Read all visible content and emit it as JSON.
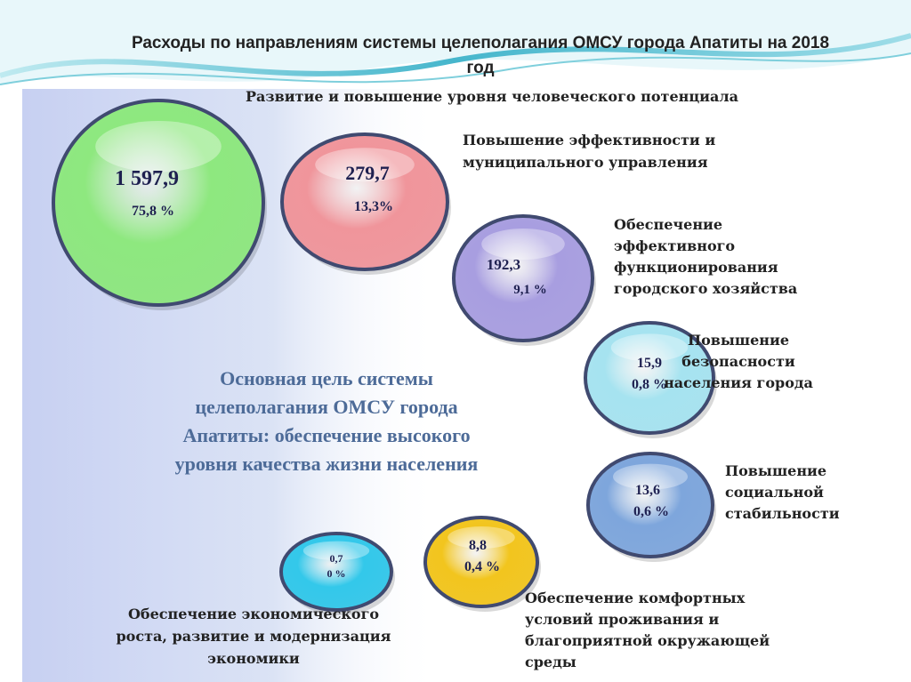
{
  "header": {
    "title_lines": [
      "Расходы по направлениям системы целеполагания ОМСУ города Апатиты  на 2018",
      "год"
    ]
  },
  "goal": {
    "lines": [
      "Основная цель системы",
      "целеполагания ОМСУ города",
      "Апатиты: обеспечение высокого",
      "уровня качества жизни населения"
    ]
  },
  "items": [
    {
      "value": "1 597,9",
      "percent": "75,8 %",
      "label_lines": [
        "Развитие и повышение уровня человеческого потенциала"
      ]
    },
    {
      "value": "279,7",
      "percent": "13,3%",
      "label_lines": [
        "Повышение эффективности и",
        "муниципального управления"
      ]
    },
    {
      "value": "192,3",
      "percent": "9,1 %",
      "label_lines": [
        "Обеспечение",
        "эффективного",
        "функционирования",
        "городского хозяйства"
      ]
    },
    {
      "value": "15,9",
      "percent": "0,8 %",
      "label_lines": [
        "Повышение",
        "безопасности",
        "населения города"
      ]
    },
    {
      "value": "13,6",
      "percent": "0,6 %",
      "label_lines": [
        "Повышение",
        "социальной",
        "стабильности"
      ]
    },
    {
      "value": "8,8",
      "percent": "0,4 %",
      "label_lines": [
        "Обеспечение комфортных",
        "условий проживания и",
        "благоприятной окружающей",
        "среды"
      ]
    },
    {
      "value": "0,7",
      "percent": "0 %",
      "label_lines": [
        "Обеспечение экономического",
        "роста, развитие и модернизация",
        "экономики"
      ]
    }
  ]
}
